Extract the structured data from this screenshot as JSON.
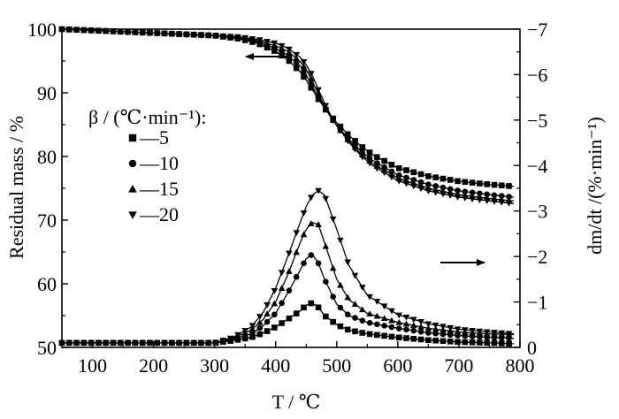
{
  "chart_data": {
    "type": "line",
    "x_axis": {
      "label": "T / ℃",
      "range": [
        50,
        800
      ],
      "ticks": [
        100,
        200,
        300,
        400,
        500,
        600,
        700,
        800
      ]
    },
    "y_left": {
      "label": "Residual mass / %",
      "range": [
        50,
        100
      ],
      "ticks": [
        50,
        60,
        70,
        80,
        90,
        100
      ]
    },
    "y_right": {
      "label": "dm/dt /(%·min⁻¹)",
      "range": [
        0,
        -7
      ],
      "ticks": [
        0,
        -1,
        -2,
        -3,
        -4,
        -5,
        -6,
        -7
      ],
      "tick_labels": [
        "0",
        "−1",
        "−2",
        "−3",
        "−4",
        "−5",
        "−6",
        "−7"
      ]
    },
    "legend": {
      "title": "β / (℃·min⁻¹):",
      "placement": "left-middle",
      "entries": [
        {
          "label": "—5",
          "marker": "square"
        },
        {
          "label": "—10",
          "marker": "circle"
        },
        {
          "label": "—15",
          "marker": "triangle-up"
        },
        {
          "label": "—20",
          "marker": "triangle-down"
        }
      ]
    },
    "annotations": [
      {
        "type": "arrow",
        "points_to": "left axis (residual mass curves)"
      },
      {
        "type": "arrow",
        "points_to": "right axis (DTG curves)"
      }
    ],
    "series": [
      {
        "name": "5",
        "axis": "left",
        "marker": "square",
        "x": [
          50,
          100,
          150,
          200,
          250,
          300,
          340,
          370,
          400,
          420,
          440,
          450,
          460,
          470,
          480,
          490,
          500,
          520,
          540,
          560,
          600,
          650,
          700,
          750,
          790
        ],
        "y": [
          100,
          99.8,
          99.6,
          99.4,
          99.2,
          99.0,
          98.5,
          97.8,
          96.5,
          95.2,
          93.3,
          92.0,
          90.5,
          89.0,
          87.6,
          86.4,
          85.3,
          83.3,
          81.6,
          80.2,
          78.2,
          76.9,
          76.1,
          75.6,
          75.3
        ]
      },
      {
        "name": "10",
        "axis": "left",
        "marker": "circle",
        "x": [
          50,
          100,
          150,
          200,
          250,
          300,
          340,
          370,
          400,
          420,
          440,
          450,
          460,
          470,
          480,
          490,
          500,
          520,
          540,
          560,
          600,
          650,
          700,
          750,
          790
        ],
        "y": [
          100,
          99.8,
          99.6,
          99.4,
          99.2,
          99.0,
          98.6,
          98.0,
          97.0,
          95.9,
          94.2,
          92.8,
          91.0,
          89.3,
          87.7,
          86.2,
          84.9,
          82.7,
          80.8,
          79.3,
          77.1,
          75.6,
          74.6,
          74.0,
          73.6
        ]
      },
      {
        "name": "15",
        "axis": "left",
        "marker": "triangle-up",
        "x": [
          50,
          100,
          150,
          200,
          250,
          300,
          340,
          370,
          400,
          420,
          440,
          450,
          460,
          470,
          480,
          490,
          500,
          520,
          540,
          560,
          600,
          650,
          700,
          750,
          790
        ],
        "y": [
          100,
          99.8,
          99.6,
          99.4,
          99.2,
          99.0,
          98.7,
          98.2,
          97.4,
          96.5,
          94.9,
          93.6,
          91.8,
          89.8,
          87.9,
          86.3,
          84.8,
          82.4,
          80.4,
          78.8,
          76.6,
          75.0,
          74.0,
          73.4,
          73.0
        ]
      },
      {
        "name": "20",
        "axis": "left",
        "marker": "triangle-down",
        "x": [
          50,
          100,
          150,
          200,
          250,
          300,
          340,
          370,
          400,
          420,
          440,
          450,
          460,
          470,
          480,
          490,
          500,
          520,
          540,
          560,
          600,
          650,
          700,
          750,
          790
        ],
        "y": [
          100,
          99.8,
          99.6,
          99.4,
          99.2,
          99.0,
          98.8,
          98.4,
          97.8,
          97.0,
          95.6,
          94.4,
          92.7,
          90.5,
          88.4,
          86.5,
          84.9,
          82.2,
          80.1,
          78.5,
          76.2,
          74.6,
          73.6,
          73.0,
          72.6
        ]
      },
      {
        "name": "5",
        "axis": "right",
        "marker": "square",
        "x": [
          50,
          100,
          150,
          200,
          250,
          300,
          330,
          360,
          380,
          400,
          420,
          440,
          450,
          460,
          470,
          480,
          500,
          520,
          550,
          600,
          650,
          700,
          750,
          790
        ],
        "y": [
          -0.1,
          -0.1,
          -0.1,
          -0.1,
          -0.1,
          -0.1,
          -0.15,
          -0.22,
          -0.32,
          -0.45,
          -0.62,
          -0.8,
          -0.93,
          -0.98,
          -0.88,
          -0.7,
          -0.5,
          -0.38,
          -0.3,
          -0.22,
          -0.16,
          -0.12,
          -0.1,
          -0.08
        ]
      },
      {
        "name": "10",
        "axis": "right",
        "marker": "circle",
        "x": [
          50,
          100,
          150,
          200,
          250,
          300,
          330,
          360,
          380,
          400,
          420,
          440,
          450,
          460,
          470,
          480,
          500,
          520,
          550,
          600,
          650,
          700,
          750,
          790
        ],
        "y": [
          -0.1,
          -0.1,
          -0.1,
          -0.1,
          -0.1,
          -0.1,
          -0.18,
          -0.3,
          -0.48,
          -0.75,
          -1.2,
          -1.7,
          -1.95,
          -2.05,
          -1.85,
          -1.5,
          -0.95,
          -0.7,
          -0.55,
          -0.42,
          -0.32,
          -0.26,
          -0.22,
          -0.2
        ]
      },
      {
        "name": "15",
        "axis": "right",
        "marker": "triangle-up",
        "x": [
          50,
          100,
          150,
          200,
          250,
          300,
          330,
          360,
          380,
          400,
          420,
          440,
          450,
          460,
          470,
          480,
          500,
          520,
          550,
          600,
          650,
          700,
          750,
          790
        ],
        "y": [
          -0.1,
          -0.1,
          -0.1,
          -0.1,
          -0.1,
          -0.1,
          -0.2,
          -0.38,
          -0.62,
          -1.0,
          -1.6,
          -2.3,
          -2.6,
          -2.75,
          -2.7,
          -2.3,
          -1.5,
          -1.05,
          -0.75,
          -0.55,
          -0.42,
          -0.34,
          -0.3,
          -0.28
        ]
      },
      {
        "name": "20",
        "axis": "right",
        "marker": "triangle-down",
        "x": [
          50,
          100,
          150,
          200,
          250,
          300,
          330,
          360,
          380,
          400,
          420,
          440,
          450,
          460,
          470,
          480,
          500,
          520,
          550,
          600,
          650,
          700,
          750,
          790
        ],
        "y": [
          -0.1,
          -0.1,
          -0.1,
          -0.1,
          -0.1,
          -0.1,
          -0.22,
          -0.45,
          -0.78,
          -1.3,
          -2.0,
          -2.75,
          -3.1,
          -3.35,
          -3.45,
          -3.35,
          -2.6,
          -1.8,
          -1.15,
          -0.72,
          -0.52,
          -0.4,
          -0.34,
          -0.3
        ]
      }
    ]
  }
}
